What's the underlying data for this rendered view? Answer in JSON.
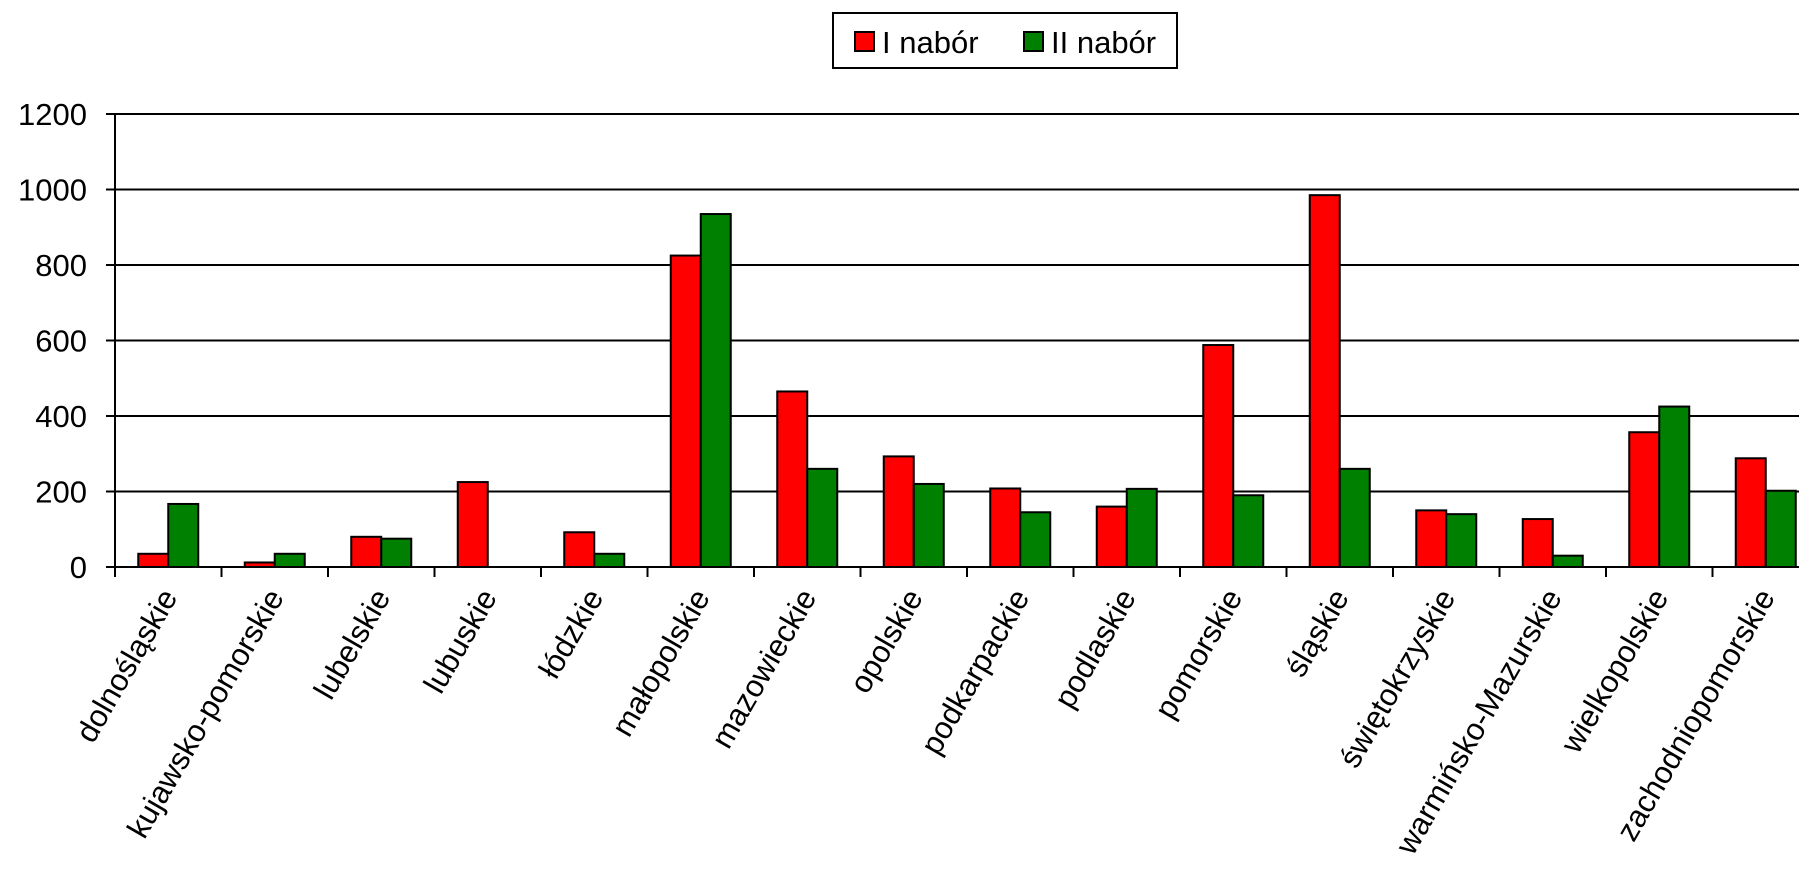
{
  "chart_data": {
    "type": "bar",
    "categories": [
      "dolnośląskie",
      "kujawsko-pomorskie",
      "lubelskie",
      "lubuskie",
      "łódzkie",
      "małopolskie",
      "mazowieckie",
      "opolskie",
      "podkarpackie",
      "podlaskie",
      "pomorskie",
      "śląskie",
      "świętokrzyskie",
      "warmińsko-Mazurskie",
      "wielkopolskie",
      "zachodniopomorskie"
    ],
    "series": [
      {
        "name": "I nabór",
        "color": "#ff0000",
        "values": [
          35,
          12,
          80,
          225,
          92,
          825,
          465,
          293,
          208,
          160,
          588,
          985,
          150,
          127,
          357,
          288
        ]
      },
      {
        "name": "II nabór",
        "color": "#008000",
        "values": [
          167,
          35,
          75,
          0,
          35,
          935,
          260,
          220,
          145,
          207,
          190,
          260,
          140,
          30,
          425,
          202
        ]
      }
    ],
    "ylim": [
      0,
      1200
    ],
    "yticks": [
      0,
      200,
      400,
      600,
      800,
      1000,
      1200
    ],
    "grid": true,
    "legend_position": "top-center",
    "title": "",
    "xlabel": "",
    "ylabel": ""
  }
}
